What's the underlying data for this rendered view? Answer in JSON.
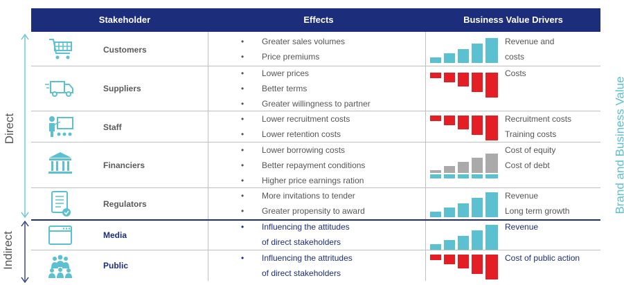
{
  "header": {
    "stakeholder": "Stakeholder",
    "effects": "Effects",
    "drivers": "Business Value Drivers"
  },
  "side_labels": {
    "direct": "Direct",
    "indirect": "Indirect",
    "right": "Brand and Business Value"
  },
  "colors": {
    "navy": "#1c2d7c",
    "teal": "#5bc0d0",
    "red": "#e31e24",
    "grey": "#aaaaaa",
    "text": "#555555"
  },
  "rows": [
    {
      "name": "Customers",
      "icon": "shopping-cart-icon",
      "effects": [
        "Greater sales volumes",
        "Price premiums"
      ],
      "drivers": [
        "Revenue and",
        "costs"
      ],
      "chart_color": "teal",
      "chart_type": "up"
    },
    {
      "name": "Suppliers",
      "icon": "delivery-truck-icon",
      "effects": [
        "Lower prices",
        "Better terms",
        "Greater willingness to partner"
      ],
      "drivers": [
        "Costs"
      ],
      "chart_color": "red",
      "chart_type": "down"
    },
    {
      "name": "Staff",
      "icon": "presenter-icon",
      "effects": [
        "Lower recruitment costs",
        "Lower retention costs"
      ],
      "drivers": [
        "Recruitment costs",
        "Training costs"
      ],
      "chart_color": "red",
      "chart_type": "down"
    },
    {
      "name": "Financiers",
      "icon": "bank-icon",
      "effects": [
        "Lower borrowing costs",
        "Better repayment conditions",
        "Higher price earnings ration"
      ],
      "drivers": [
        "Cost of equity",
        "Cost of debt"
      ],
      "chart_color": "grey",
      "chart_type": "grey-up"
    },
    {
      "name": "Regulators",
      "icon": "document-check-icon",
      "effects": [
        "More invitations to tender",
        "Greater propensity to award"
      ],
      "drivers": [
        "Revenue",
        "Long term growth"
      ],
      "chart_color": "teal",
      "chart_type": "up"
    },
    {
      "name": "Media",
      "icon": "browser-window-icon",
      "effects": [
        "Influencing the attitudes",
        "of direct stakeholders"
      ],
      "drivers": [
        "Revenue"
      ],
      "chart_color": "teal",
      "chart_type": "up"
    },
    {
      "name": "Public",
      "icon": "crowd-icon",
      "effects": [
        "Influencing the attritudes",
        "of direct stakeholders"
      ],
      "drivers": [
        "Cost of public action"
      ],
      "chart_color": "red",
      "chart_type": "down"
    }
  ]
}
